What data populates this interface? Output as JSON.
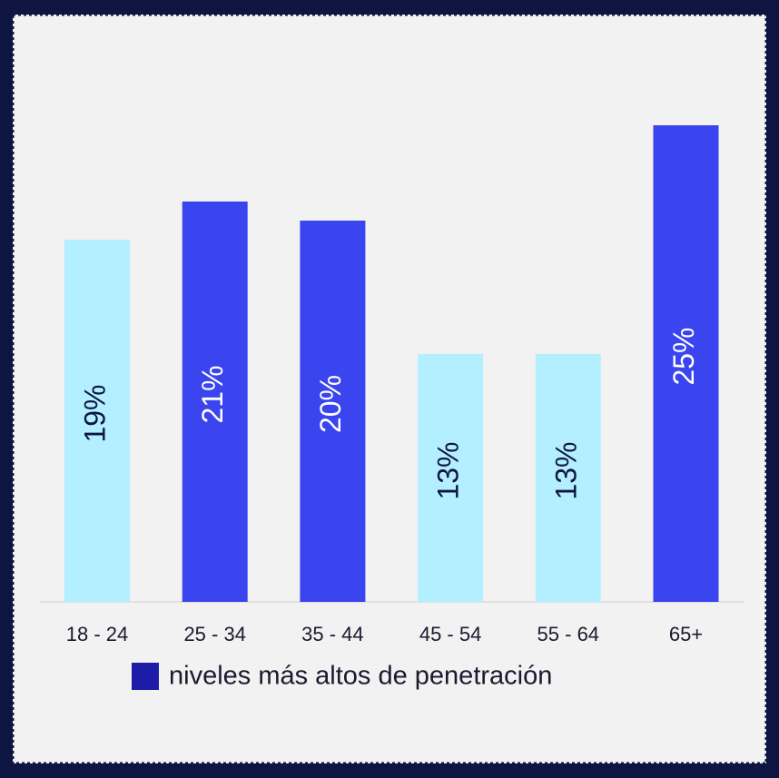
{
  "chart_data": {
    "type": "bar",
    "categories": [
      "18 - 24",
      "25 - 34",
      "35 - 44",
      "45 - 54",
      "55 - 64",
      "65+"
    ],
    "values": [
      19,
      21,
      20,
      13,
      13,
      25
    ],
    "value_labels": [
      "19%",
      "21%",
      "20%",
      "13%",
      "13%",
      "25%"
    ],
    "colors": [
      "#b3efff",
      "#3a45ef",
      "#3a45ef",
      "#b3efff",
      "#b3efff",
      "#3a45ef"
    ],
    "legend": {
      "label": "niveles más altos de penetración",
      "color": "#1c1ca8"
    }
  }
}
